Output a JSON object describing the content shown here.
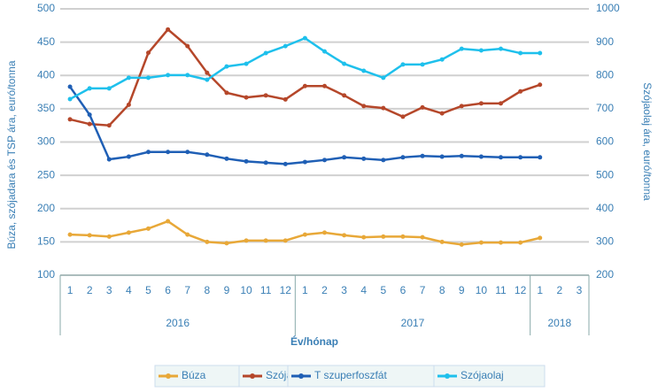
{
  "chart_data": {
    "type": "line",
    "y_label": "Búza, szójadara és TSP ára, euró/tonna",
    "y2_label": "Szójaolaj ára, euró/tonna",
    "x_label": "Év/hónap",
    "categories": [
      "1",
      "2",
      "3",
      "4",
      "5",
      "6",
      "7",
      "8",
      "9",
      "10",
      "11",
      "12",
      "1",
      "2",
      "3",
      "4",
      "5",
      "6",
      "7",
      "8",
      "9",
      "10",
      "11",
      "12",
      "1",
      "2",
      "3"
    ],
    "year_labels": [
      "2016",
      "2017",
      "2018"
    ],
    "ylim": [
      100,
      500
    ],
    "yticks": [
      100,
      150,
      200,
      250,
      300,
      350,
      400,
      450,
      500
    ],
    "y2lim": [
      200,
      1000
    ],
    "y2ticks": [
      200,
      300,
      400,
      500,
      600,
      700,
      800,
      900,
      1000
    ],
    "grid": true,
    "series": [
      {
        "name": "Búza",
        "color": "#e8a838",
        "values": [
          161,
          160,
          158,
          164,
          170,
          181,
          161,
          150,
          148,
          152,
          152,
          152,
          161,
          164,
          160,
          157,
          158,
          158,
          157,
          150,
          146,
          149,
          149,
          149,
          156,
          null,
          null
        ]
      },
      {
        "name": "Szója-dara",
        "color": "#b5472a",
        "values": [
          334,
          327,
          325,
          356,
          434,
          469,
          444,
          404,
          374,
          367,
          370,
          364,
          384,
          384,
          370,
          354,
          351,
          338,
          352,
          343,
          354,
          358,
          358,
          376,
          386,
          null,
          null
        ]
      },
      {
        "name": "T szuperfoszfát",
        "color": "#1f5fb5",
        "values": [
          383,
          341,
          274,
          278,
          285,
          285,
          285,
          281,
          275,
          271,
          269,
          267,
          270,
          273,
          277,
          275,
          273,
          277,
          279,
          278,
          279,
          278,
          277,
          277,
          277,
          null,
          null
        ]
      },
      {
        "name": "Szójaolaj",
        "color": "#1ec0ec",
        "axis": "y2",
        "values": [
          729,
          761,
          761,
          793,
          793,
          801,
          801,
          787,
          827,
          835,
          867,
          888,
          912,
          872,
          835,
          814,
          793,
          833,
          833,
          848,
          880,
          875,
          880,
          867,
          867,
          null,
          null
        ]
      }
    ]
  }
}
